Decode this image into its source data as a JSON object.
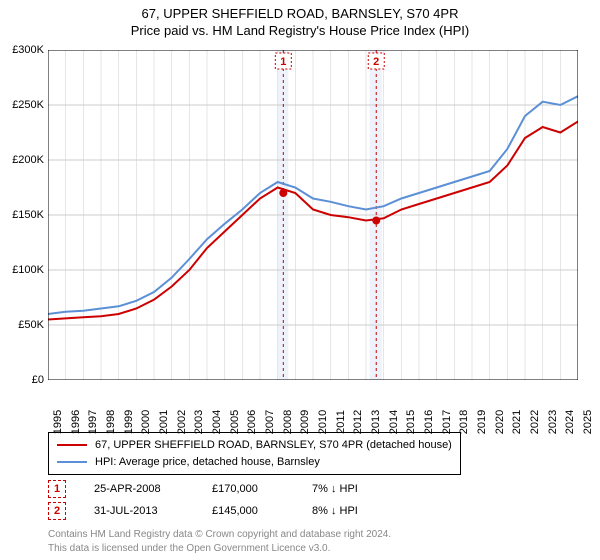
{
  "title_line1": "67, UPPER SHEFFIELD ROAD, BARNSLEY, S70 4PR",
  "title_line2": "Price paid vs. HM Land Registry's House Price Index (HPI)",
  "chart": {
    "type": "line",
    "background_color": "#ffffff",
    "grid_color": "#cccccc",
    "title_fontsize": 13,
    "label_fontsize": 11,
    "x_years": [
      1995,
      1996,
      1997,
      1998,
      1999,
      2000,
      2001,
      2002,
      2003,
      2004,
      2005,
      2006,
      2007,
      2008,
      2009,
      2010,
      2011,
      2012,
      2013,
      2014,
      2015,
      2016,
      2017,
      2018,
      2019,
      2020,
      2021,
      2022,
      2023,
      2024,
      2025
    ],
    "ylim": [
      0,
      300000
    ],
    "ytick_step": 50000,
    "yticks": [
      "£0",
      "£50K",
      "£100K",
      "£150K",
      "£200K",
      "£250K",
      "£300K"
    ],
    "band1": {
      "x_start": 2008.0,
      "x_end": 2008.6,
      "color": "#eef3fb"
    },
    "band2": {
      "x_start": 2013.2,
      "x_end": 2013.9,
      "color": "#eef3fb"
    },
    "marker_lines": [
      {
        "x": 2008.32,
        "label": "1",
        "label_y": 290000
      },
      {
        "x": 2013.58,
        "label": "2",
        "label_y": 290000
      }
    ],
    "series": [
      {
        "name": "67, UPPER SHEFFIELD ROAD, BARNSLEY, S70 4PR (detached house)",
        "color": "#cc0000",
        "line_width": 2,
        "values": [
          55000,
          56000,
          57000,
          58000,
          60000,
          65000,
          73000,
          85000,
          100000,
          120000,
          135000,
          150000,
          165000,
          175000,
          170000,
          155000,
          150000,
          148000,
          145000,
          147000,
          155000,
          160000,
          165000,
          170000,
          175000,
          180000,
          195000,
          220000,
          230000,
          225000,
          235000
        ]
      },
      {
        "name": "HPI: Average price, detached house, Barnsley",
        "color": "#5b8fd6",
        "line_width": 2,
        "values": [
          60000,
          62000,
          63000,
          65000,
          67000,
          72000,
          80000,
          93000,
          110000,
          128000,
          142000,
          155000,
          170000,
          180000,
          175000,
          165000,
          162000,
          158000,
          155000,
          158000,
          165000,
          170000,
          175000,
          180000,
          185000,
          190000,
          210000,
          240000,
          253000,
          250000,
          258000
        ]
      }
    ],
    "sale_points": [
      {
        "x": 2008.32,
        "y": 170000,
        "color": "#cc0000",
        "radius": 4
      },
      {
        "x": 2013.58,
        "y": 145000,
        "color": "#cc0000",
        "radius": 4
      }
    ]
  },
  "legend": {
    "items": [
      {
        "color": "#cc0000",
        "label": "67, UPPER SHEFFIELD ROAD, BARNSLEY, S70 4PR (detached house)"
      },
      {
        "color": "#5b8fd6",
        "label": "HPI: Average price, detached house, Barnsley"
      }
    ]
  },
  "sales": [
    {
      "marker": "1",
      "date": "25-APR-2008",
      "price": "£170,000",
      "diff": "7% ↓ HPI"
    },
    {
      "marker": "2",
      "date": "31-JUL-2013",
      "price": "£145,000",
      "diff": "8% ↓ HPI"
    }
  ],
  "footer_line1": "Contains HM Land Registry data © Crown copyright and database right 2024.",
  "footer_line2": "This data is licensed under the Open Government Licence v3.0."
}
